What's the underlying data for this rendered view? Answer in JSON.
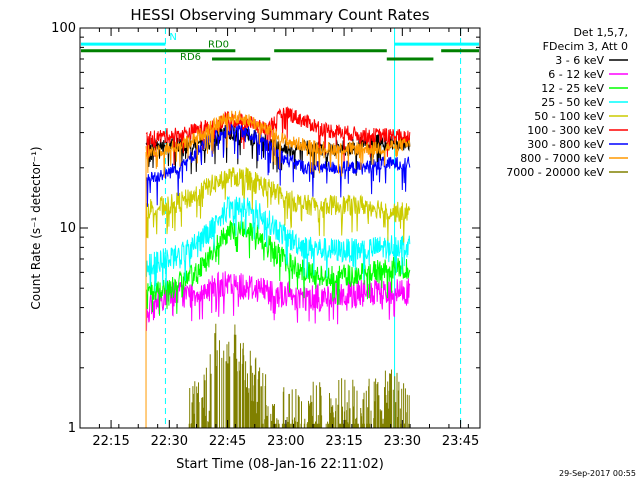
{
  "chart_data": {
    "type": "line",
    "title": "HESSI Observing Summary Count Rates",
    "xlabel": "Start Time (08-Jan-16 22:11:02)",
    "ylabel": "Count Rate (s⁻¹ detector⁻¹)",
    "x_range": [
      "22:07",
      "23:50"
    ],
    "ylim": [
      1,
      100
    ],
    "y_scale": "log",
    "x_ticks": [
      "22:15",
      "22:30",
      "22:45",
      "23:00",
      "23:15",
      "23:30",
      "23:45"
    ],
    "y_ticks": [
      1,
      10,
      100
    ],
    "data_start": "22:24",
    "data_end": "23:32",
    "legend_header": [
      "Det 1,5,7,",
      "FDecim 3, Att 0"
    ],
    "legend_position": "right",
    "series": [
      {
        "name": "3 - 6 keV",
        "color": "#000000",
        "x": [
          "22:24",
          "22:30",
          "22:35",
          "22:40",
          "22:45",
          "22:50",
          "22:55",
          "23:00",
          "23:05",
          "23:10",
          "23:15",
          "23:20",
          "23:25",
          "23:28",
          "23:32"
        ],
        "y": [
          26,
          26,
          26,
          27,
          30,
          29,
          27,
          25,
          25,
          25,
          25,
          26,
          27,
          27,
          27
        ]
      },
      {
        "name": "6 - 12 keV",
        "color": "#ff00ff",
        "x": [
          "22:24",
          "22:30",
          "22:35",
          "22:40",
          "22:45",
          "22:50",
          "22:55",
          "23:00",
          "23:05",
          "23:10",
          "23:15",
          "23:20",
          "23:25",
          "23:28",
          "23:32"
        ],
        "y": [
          3.8,
          4.8,
          4.6,
          5.0,
          5.2,
          5.1,
          4.9,
          4.6,
          4.5,
          4.5,
          4.6,
          4.7,
          4.7,
          4.8,
          4.8
        ]
      },
      {
        "name": "12 - 25 keV",
        "color": "#00ff00",
        "x": [
          "22:24",
          "22:30",
          "22:35",
          "22:40",
          "22:45",
          "22:50",
          "22:55",
          "23:00",
          "23:05",
          "23:10",
          "23:15",
          "23:20",
          "23:25",
          "23:28",
          "23:32"
        ],
        "y": [
          4.8,
          5.0,
          5.6,
          7.0,
          9.5,
          10.0,
          8.5,
          6.8,
          6.0,
          5.8,
          5.8,
          5.9,
          6.2,
          6.3,
          6.3
        ]
      },
      {
        "name": "25 - 50 keV",
        "color": "#00ffff",
        "x": [
          "22:24",
          "22:30",
          "22:35",
          "22:40",
          "22:45",
          "22:50",
          "22:55",
          "23:00",
          "23:05",
          "23:10",
          "23:15",
          "23:20",
          "23:25",
          "23:28",
          "23:32"
        ],
        "y": [
          6.5,
          7.0,
          7.8,
          9.5,
          12.5,
          13.0,
          11.0,
          9.0,
          8.0,
          7.8,
          7.7,
          7.8,
          8.0,
          8.2,
          8.2
        ]
      },
      {
        "name": "50 - 100 keV",
        "color": "#cccc00",
        "x": [
          "22:24",
          "22:30",
          "22:35",
          "22:40",
          "22:45",
          "22:50",
          "22:55",
          "23:00",
          "23:05",
          "23:10",
          "23:15",
          "23:20",
          "23:25",
          "23:28",
          "23:32"
        ],
        "y": [
          12.5,
          13.0,
          14.0,
          16.0,
          18.0,
          18.0,
          16.0,
          14.0,
          13.0,
          13.0,
          13.0,
          13.0,
          12.5,
          12.0,
          12.0
        ]
      },
      {
        "name": "100 - 300 keV",
        "color": "#ff0000",
        "x": [
          "22:24",
          "22:30",
          "22:35",
          "22:40",
          "22:45",
          "22:50",
          "22:55",
          "23:00",
          "23:05",
          "23:10",
          "23:15",
          "23:20",
          "23:25",
          "23:28",
          "23:32"
        ],
        "y": [
          28,
          29,
          30,
          32,
          35,
          34,
          31,
          38,
          34,
          31,
          30,
          29,
          29,
          29,
          28
        ]
      },
      {
        "name": "300 - 800 keV",
        "color": "#0000ff",
        "x": [
          "22:24",
          "22:30",
          "22:35",
          "22:40",
          "22:45",
          "22:50",
          "22:55",
          "23:00",
          "23:05",
          "23:10",
          "23:15",
          "23:20",
          "23:25",
          "23:28",
          "23:32"
        ],
        "y": [
          17.5,
          19.0,
          22.0,
          27.0,
          31.0,
          30.0,
          26.0,
          22.0,
          20.0,
          20.0,
          20.0,
          20.0,
          21.0,
          21.0,
          21.0
        ]
      },
      {
        "name": "800 - 7000 keV",
        "color": "#ff9900",
        "x": [
          "22:24",
          "22:30",
          "22:35",
          "22:40",
          "22:45",
          "22:50",
          "22:55",
          "23:00",
          "23:05",
          "23:10",
          "23:15",
          "23:20",
          "23:25",
          "23:28",
          "23:32"
        ],
        "y": [
          24,
          25,
          27,
          31,
          36,
          35,
          31,
          27,
          26,
          25,
          25,
          25,
          25,
          26,
          26
        ]
      },
      {
        "name": "7000 - 20000 keV",
        "color": "#808000",
        "x": [
          "22:35",
          "22:38",
          "22:40",
          "22:42",
          "22:45",
          "22:48",
          "22:50",
          "22:53",
          "22:55",
          "23:00",
          "23:25",
          "23:27",
          "23:29",
          "23:32"
        ],
        "y": [
          1.2,
          1.5,
          1.4,
          2.5,
          2.8,
          2.5,
          2.0,
          1.5,
          1.3,
          1.2,
          1.3,
          1.5,
          1.4,
          1.3
        ]
      }
    ],
    "annotations": [
      {
        "label": "N",
        "color": "#00ffff",
        "x_start": "22:07",
        "x_end": "22:29",
        "y": 83
      },
      {
        "label": "N",
        "color": "#00ffff",
        "x_start": "23:28",
        "x_end": "23:50",
        "y": 83
      },
      {
        "label": "RD0",
        "color": "#008000",
        "x_start": "22:07",
        "x_end": "22:47",
        "y": 77
      },
      {
        "label": "RD0",
        "color": "#008000",
        "x_start": "22:57",
        "x_end": "23:26",
        "y": 77
      },
      {
        "label": "RD0",
        "color": "#008000",
        "x_start": "23:40",
        "x_end": "23:50",
        "y": 77
      },
      {
        "label": "RD6",
        "color": "#008000",
        "x_start": "22:41",
        "x_end": "22:56",
        "y": 70
      },
      {
        "label": "RD6",
        "color": "#008000",
        "x_start": "23:26",
        "x_end": "23:38",
        "y": 70
      }
    ],
    "vertical_markers": [
      {
        "x": "22:07",
        "color": "#00ffff",
        "style": "solid"
      },
      {
        "x": "22:29",
        "color": "#00ffff",
        "style": "dashed"
      },
      {
        "x": "23:28",
        "color": "#00ffff",
        "style": "solid"
      },
      {
        "x": "23:45",
        "color": "#00ffff",
        "style": "dashed"
      }
    ],
    "grid": false
  },
  "footer_timestamp": "29-Sep-2017 00:55"
}
